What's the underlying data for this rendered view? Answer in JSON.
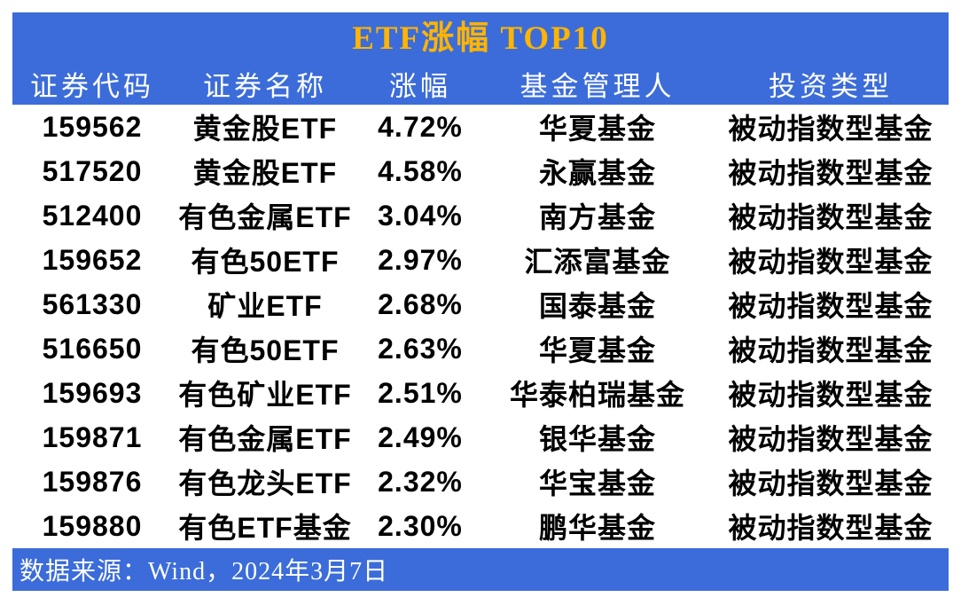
{
  "chart_data": {
    "type": "table",
    "title": "ETF涨幅 TOP10",
    "columns": [
      "证券代码",
      "证券名称",
      "涨幅",
      "基金管理人",
      "投资类型"
    ],
    "rows": [
      [
        "159562",
        "黄金股ETF",
        "4.72%",
        "华夏基金",
        "被动指数型基金"
      ],
      [
        "517520",
        "黄金股ETF",
        "4.58%",
        "永赢基金",
        "被动指数型基金"
      ],
      [
        "512400",
        "有色金属ETF",
        "3.04%",
        "南方基金",
        "被动指数型基金"
      ],
      [
        "159652",
        "有色50ETF",
        "2.97%",
        "汇添富基金",
        "被动指数型基金"
      ],
      [
        "561330",
        "矿业ETF",
        "2.68%",
        "国泰基金",
        "被动指数型基金"
      ],
      [
        "516650",
        "有色50ETF",
        "2.63%",
        "华夏基金",
        "被动指数型基金"
      ],
      [
        "159693",
        "有色矿业ETF",
        "2.51%",
        "华泰柏瑞基金",
        "被动指数型基金"
      ],
      [
        "159871",
        "有色金属ETF",
        "2.49%",
        "银华基金",
        "被动指数型基金"
      ],
      [
        "159876",
        "有色龙头ETF",
        "2.32%",
        "华宝基金",
        "被动指数型基金"
      ],
      [
        "159880",
        "有色ETF基金",
        "2.30%",
        "鹏华基金",
        "被动指数型基金"
      ]
    ],
    "source": "数据来源：Wind，2024年3月7日",
    "layout": {
      "grid": "off",
      "row_changes_all_positive": true
    }
  },
  "colors": {
    "header_blue": "#3b6cd9",
    "title_gold": "#ffb400",
    "body_text": "#000000",
    "header_text": "#ffffff",
    "background": "#ffffff"
  }
}
